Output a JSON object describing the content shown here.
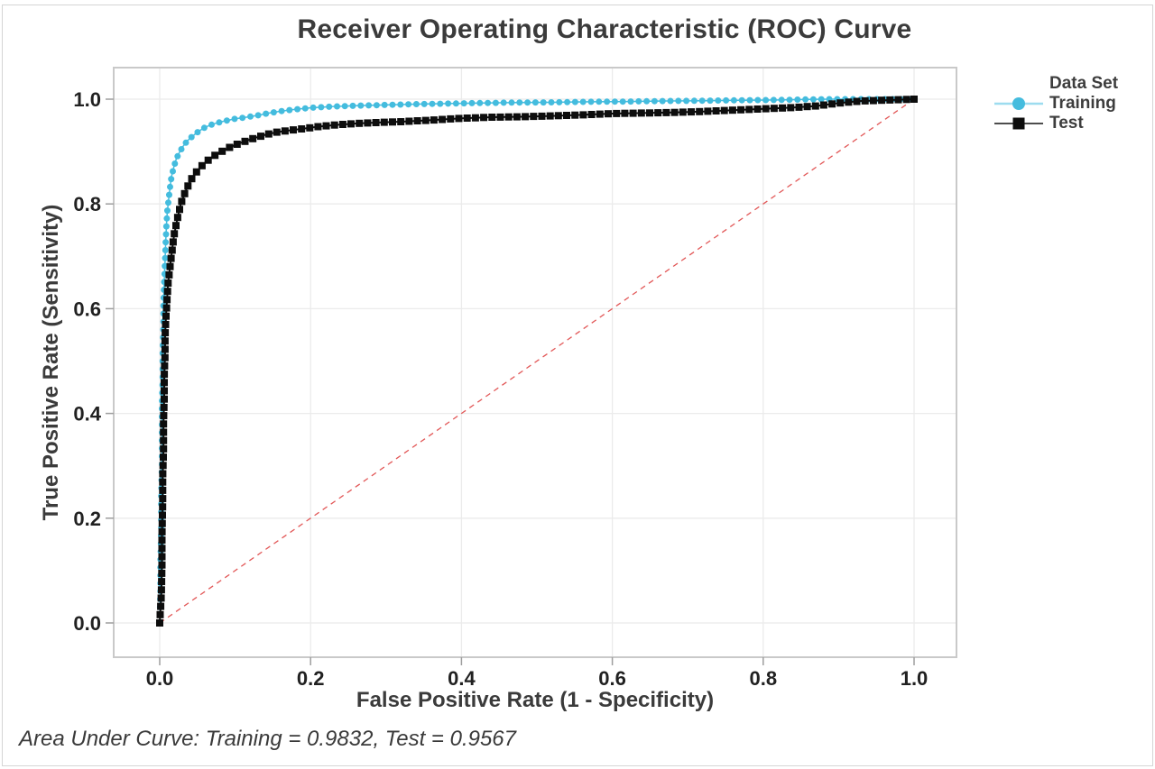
{
  "title": "Receiver Operating Characteristic (ROC) Curve",
  "footer_annotation": "Area Under Curve: Training = 0.9832, Test = 0.9567",
  "colors": {
    "training": "#44bcde",
    "training_legend_line": "#9ddcef",
    "test": "#0d0d0d",
    "test_legend_line": "#4d4d4d",
    "reference": "#e25757",
    "grid": "#ebebeb",
    "frame": "#c9c9c9",
    "text_dark": "#3b3b3b",
    "tick_text": "#212121"
  },
  "chart_data": {
    "type": "line",
    "title": "Receiver Operating Characteristic (ROC) Curve",
    "xlabel": "False Positive Rate (1 - Specificity)",
    "ylabel": "True Positive Rate (Sensitivity)",
    "xlim": [
      0.0,
      1.0
    ],
    "ylim": [
      0.0,
      1.0
    ],
    "x_ticks": [
      0.0,
      0.2,
      0.4,
      0.6,
      0.8,
      1.0
    ],
    "y_ticks": [
      0.0,
      0.2,
      0.4,
      0.6,
      0.8,
      1.0
    ],
    "x_tick_labels": [
      "0.0",
      "0.2",
      "0.4",
      "0.6",
      "0.8",
      "1.0"
    ],
    "y_tick_labels": [
      "0.0",
      "0.2",
      "0.4",
      "0.6",
      "0.8",
      "1.0"
    ],
    "grid": true,
    "legend": {
      "title": "Data Set",
      "position": "right",
      "entries": [
        {
          "label": "Training",
          "marker": "circle",
          "color": "#44bcde",
          "line_color": "#9ddcef"
        },
        {
          "label": "Test",
          "marker": "square",
          "color": "#0d0d0d",
          "line_color": "#4d4d4d"
        }
      ]
    },
    "reference_line": {
      "name": "chance-diagonal",
      "from": [
        0,
        0
      ],
      "to": [
        1,
        1
      ],
      "style": "dashed",
      "color": "#e25757"
    },
    "annotations": {
      "auc_training": 0.9832,
      "auc_test": 0.9567
    },
    "series": [
      {
        "name": "Training",
        "marker": "circle",
        "color": "#44bcde",
        "auc": 0.9832,
        "points": [
          [
            0.0,
            0.0
          ],
          [
            0.001,
            0.06
          ],
          [
            0.001,
            0.12
          ],
          [
            0.002,
            0.18
          ],
          [
            0.002,
            0.24
          ],
          [
            0.003,
            0.3
          ],
          [
            0.003,
            0.36
          ],
          [
            0.003,
            0.42
          ],
          [
            0.004,
            0.47
          ],
          [
            0.004,
            0.52
          ],
          [
            0.005,
            0.57
          ],
          [
            0.005,
            0.61
          ],
          [
            0.006,
            0.65
          ],
          [
            0.007,
            0.69
          ],
          [
            0.008,
            0.73
          ],
          [
            0.009,
            0.76
          ],
          [
            0.01,
            0.785
          ],
          [
            0.012,
            0.81
          ],
          [
            0.014,
            0.835
          ],
          [
            0.016,
            0.855
          ],
          [
            0.019,
            0.872
          ],
          [
            0.022,
            0.886
          ],
          [
            0.026,
            0.898
          ],
          [
            0.031,
            0.91
          ],
          [
            0.037,
            0.921
          ],
          [
            0.044,
            0.93
          ],
          [
            0.052,
            0.939
          ],
          [
            0.061,
            0.947
          ],
          [
            0.072,
            0.953
          ],
          [
            0.085,
            0.958
          ],
          [
            0.1,
            0.9625
          ],
          [
            0.115,
            0.9655
          ],
          [
            0.13,
            0.969
          ],
          [
            0.145,
            0.9735
          ],
          [
            0.16,
            0.977
          ],
          [
            0.18,
            0.9805
          ],
          [
            0.2,
            0.9835
          ],
          [
            0.23,
            0.986
          ],
          [
            0.26,
            0.9875
          ],
          [
            0.3,
            0.989
          ],
          [
            0.34,
            0.9905
          ],
          [
            0.38,
            0.9915
          ],
          [
            0.42,
            0.9925
          ],
          [
            0.47,
            0.9935
          ],
          [
            0.52,
            0.994
          ],
          [
            0.57,
            0.995
          ],
          [
            0.62,
            0.9955
          ],
          [
            0.67,
            0.9965
          ],
          [
            0.72,
            0.997
          ],
          [
            0.77,
            0.998
          ],
          [
            0.82,
            0.9985
          ],
          [
            0.86,
            0.9995
          ],
          [
            0.89,
            1.0
          ],
          [
            1.0,
            1.0
          ]
        ]
      },
      {
        "name": "Test",
        "marker": "square",
        "color": "#0d0d0d",
        "auc": 0.9567,
        "points": [
          [
            0.0,
            0.0
          ],
          [
            0.002,
            0.05
          ],
          [
            0.003,
            0.11
          ],
          [
            0.003,
            0.17
          ],
          [
            0.004,
            0.23
          ],
          [
            0.004,
            0.28
          ],
          [
            0.005,
            0.33
          ],
          [
            0.005,
            0.38
          ],
          [
            0.006,
            0.43
          ],
          [
            0.006,
            0.47
          ],
          [
            0.007,
            0.51
          ],
          [
            0.007,
            0.545
          ],
          [
            0.008,
            0.575
          ],
          [
            0.009,
            0.6
          ],
          [
            0.01,
            0.625
          ],
          [
            0.011,
            0.648
          ],
          [
            0.013,
            0.672
          ],
          [
            0.015,
            0.695
          ],
          [
            0.017,
            0.718
          ],
          [
            0.019,
            0.74
          ],
          [
            0.022,
            0.762
          ],
          [
            0.025,
            0.782
          ],
          [
            0.028,
            0.8
          ],
          [
            0.032,
            0.816
          ],
          [
            0.036,
            0.83
          ],
          [
            0.041,
            0.845
          ],
          [
            0.047,
            0.858
          ],
          [
            0.054,
            0.87
          ],
          [
            0.062,
            0.881
          ],
          [
            0.071,
            0.891
          ],
          [
            0.082,
            0.9
          ],
          [
            0.094,
            0.909
          ],
          [
            0.108,
            0.917
          ],
          [
            0.124,
            0.925
          ],
          [
            0.14,
            0.932
          ],
          [
            0.155,
            0.937
          ],
          [
            0.17,
            0.94
          ],
          [
            0.19,
            0.9435
          ],
          [
            0.21,
            0.9475
          ],
          [
            0.235,
            0.951
          ],
          [
            0.26,
            0.9535
          ],
          [
            0.29,
            0.9555
          ],
          [
            0.32,
            0.957
          ],
          [
            0.36,
            0.96
          ],
          [
            0.4,
            0.9635
          ],
          [
            0.44,
            0.9655
          ],
          [
            0.48,
            0.9665
          ],
          [
            0.52,
            0.968
          ],
          [
            0.56,
            0.97
          ],
          [
            0.6,
            0.9725
          ],
          [
            0.64,
            0.9735
          ],
          [
            0.68,
            0.9745
          ],
          [
            0.72,
            0.9765
          ],
          [
            0.76,
            0.979
          ],
          [
            0.8,
            0.9815
          ],
          [
            0.84,
            0.984
          ],
          [
            0.87,
            0.987
          ],
          [
            0.9,
            0.9925
          ],
          [
            0.93,
            0.9965
          ],
          [
            0.96,
            0.998
          ],
          [
            1.0,
            1.0
          ]
        ]
      }
    ]
  }
}
